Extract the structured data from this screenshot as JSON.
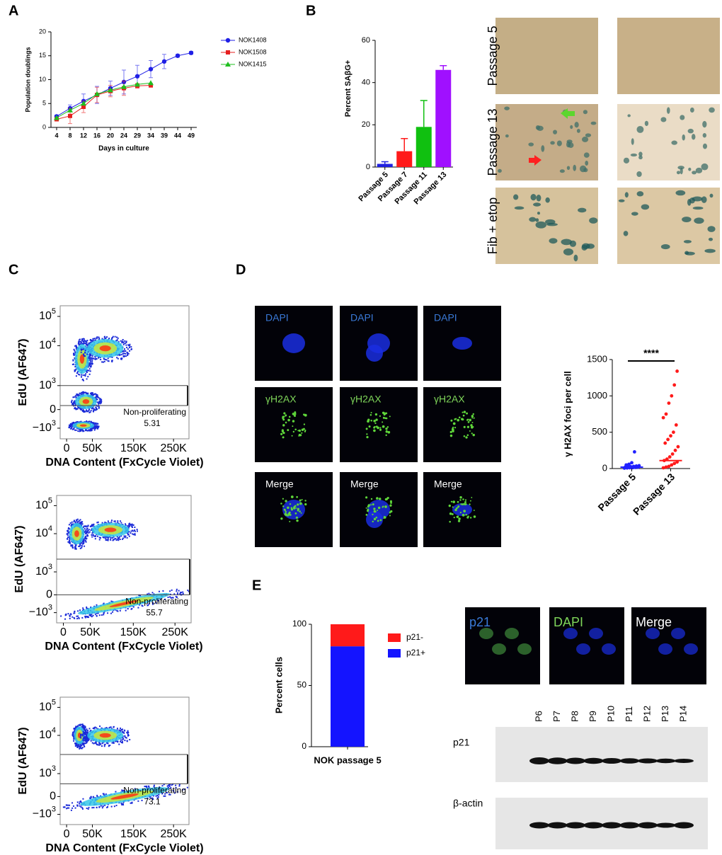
{
  "panel_labels": [
    "A",
    "B",
    "C",
    "D",
    "E"
  ],
  "chart_data": [
    {
      "type": "line",
      "ylabel": "Population doublings",
      "xlabel": "Days in culture",
      "categories": [
        "4",
        "8",
        "12",
        "16",
        "20",
        "24",
        "29",
        "34",
        "39",
        "44",
        "49"
      ],
      "ylim": [
        0,
        20
      ],
      "yticks": [
        0,
        5,
        10,
        15,
        20
      ],
      "series": [
        {
          "name": "NOK1408",
          "color": "#1f1fe6",
          "marker": "circle",
          "values": [
            2.3,
            4.0,
            5.5,
            6.8,
            8.2,
            9.5,
            10.7,
            12.2,
            13.8,
            15.0,
            15.6
          ],
          "errors": [
            0.3,
            0.7,
            1.5,
            1.8,
            1.5,
            2.5,
            2.3,
            1.8,
            1.5,
            0.3,
            0.3
          ]
        },
        {
          "name": "NOK1508",
          "color": "#e61f1f",
          "marker": "square",
          "values": [
            1.7,
            2.4,
            4.3,
            6.8,
            7.6,
            8.2,
            8.7,
            8.8,
            null,
            null,
            null
          ],
          "errors": [
            0.3,
            1.6,
            1.2,
            1.6,
            1.2,
            1.5,
            0.5,
            0.4,
            null,
            null,
            null
          ]
        },
        {
          "name": "NOK1415",
          "color": "#1fbf1f",
          "marker": "triangle",
          "values": [
            2.0,
            3.6,
            5.0,
            7.0,
            7.8,
            8.5,
            9.0,
            9.3,
            null,
            null,
            null
          ],
          "errors": [
            null,
            null,
            null,
            null,
            null,
            null,
            null,
            null,
            null,
            null,
            null
          ]
        }
      ]
    },
    {
      "type": "bar",
      "ylabel": "Percent SAβG+",
      "categories": [
        "Passage 5",
        "Passage 7",
        "Passage 11",
        "Passage 13"
      ],
      "values": [
        1.5,
        7.5,
        19,
        46
      ],
      "errors": [
        1,
        6,
        12.5,
        2
      ],
      "colors": [
        "#2020e0",
        "#ff1a1a",
        "#10c010",
        "#a010ff"
      ],
      "ylim": [
        0,
        60
      ],
      "yticks": [
        0,
        20,
        40,
        60
      ]
    },
    {
      "type": "strip",
      "ylabel": "γ H2AX foci per cell",
      "annotation": "****",
      "categories": [
        "Passage 5",
        "Passage 13"
      ],
      "colors": [
        "#2020ff",
        "#ff1a1a"
      ],
      "points": [
        [
          5,
          8,
          10,
          12,
          15,
          18,
          20,
          22,
          25,
          30,
          35,
          40,
          50,
          60,
          80,
          230
        ],
        [
          10,
          20,
          30,
          50,
          70,
          90,
          110,
          130,
          160,
          200,
          250,
          300,
          350,
          400,
          450,
          500,
          600,
          700,
          750,
          900,
          1000,
          1150,
          1340
        ]
      ],
      "means": [
        20,
        110
      ],
      "ylim": [
        0,
        1500
      ],
      "yticks": [
        0,
        500,
        1000,
        1500
      ]
    },
    {
      "type": "stacked_bar",
      "ylabel": "Percent cells",
      "categories": [
        "NOK passage 5"
      ],
      "series": [
        {
          "name": "p21+",
          "color": "#1414ff",
          "values": [
            82
          ]
        },
        {
          "name": "p21-",
          "color": "#ff1a1a",
          "values": [
            18
          ]
        }
      ],
      "ylim": [
        0,
        100
      ],
      "yticks": [
        0,
        50,
        100
      ]
    }
  ],
  "micrographs": {
    "row_labels": [
      "Passage 5",
      "Passage 13",
      "Fib + etop"
    ]
  },
  "flow_cytometry": {
    "y_label": "EdU (AF647)",
    "x_label": "DNA Content (FxCycle Violet)",
    "y_ticks": [
      {
        "base": "10",
        "exp": "5"
      },
      {
        "base": "10",
        "exp": "4"
      },
      {
        "base": "10",
        "exp": "3"
      },
      "0",
      {
        "base": "−10",
        "exp": "3"
      }
    ],
    "x_ticks": [
      "0",
      "50K",
      "150K",
      "250K"
    ],
    "plots": [
      {
        "gate_label": "Non-proliferating",
        "value": 5.31
      },
      {
        "gate_label": "Non-proliferating",
        "value": 55.7
      },
      {
        "gate_label": "Non-proliferating",
        "value": 73.1
      }
    ]
  },
  "if_images": {
    "channels": [
      "DAPI",
      "γH2AX",
      "Merge"
    ]
  },
  "p21_images": {
    "channels": [
      "p21",
      "DAPI",
      "Merge"
    ]
  },
  "western_blot": {
    "lanes": [
      "P6",
      "P7",
      "P8",
      "P9",
      "P10",
      "P11",
      "P12",
      "P13",
      "P14"
    ],
    "rows": [
      "p21",
      "β-actin"
    ]
  }
}
